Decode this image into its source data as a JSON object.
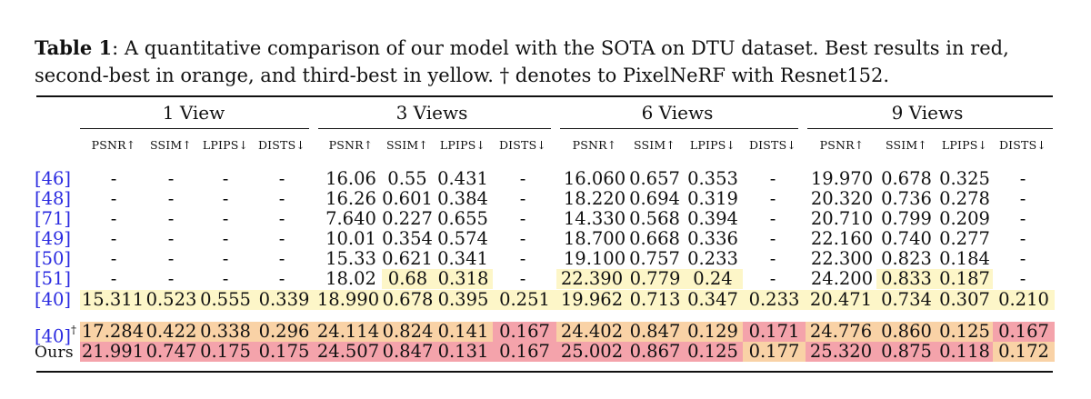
{
  "caption": {
    "label": "Table 1",
    "text": ": A quantitative comparison of our model with the SOTA on DTU dataset. Best results in red, second-best in orange, and third-best in yellow. † denotes to PixelNeRF with Resnet152."
  },
  "colors": {
    "best": "#f4a3ab",
    "second": "#f9d2a6",
    "third": "#fdf6c8",
    "ref_link": "#2b2be0"
  },
  "groups": [
    "1 View",
    "3 Views",
    "6 Views",
    "9 Views"
  ],
  "metrics": [
    "PSNR↑",
    "SSIM↑",
    "LPIPS↓",
    "DISTS↓"
  ],
  "rows": [
    {
      "ref": "[46]",
      "dagger": false,
      "values": [
        "-",
        "-",
        "-",
        "-",
        "16.06",
        "0.55",
        "0.431",
        "-",
        "16.060",
        "0.657",
        "0.353",
        "-",
        "19.970",
        "0.678",
        "0.325",
        "-"
      ],
      "hl": [
        "",
        "",
        "",
        "",
        "",
        "",
        "",
        "",
        "",
        "",
        "",
        "",
        "",
        "",
        "",
        ""
      ]
    },
    {
      "ref": "[48]",
      "dagger": false,
      "values": [
        "-",
        "-",
        "-",
        "-",
        "16.26",
        "0.601",
        "0.384",
        "-",
        "18.220",
        "0.694",
        "0.319",
        "-",
        "20.320",
        "0.736",
        "0.278",
        "-"
      ],
      "hl": [
        "",
        "",
        "",
        "",
        "",
        "",
        "",
        "",
        "",
        "",
        "",
        "",
        "",
        "",
        "",
        ""
      ]
    },
    {
      "ref": "[71]",
      "dagger": false,
      "values": [
        "-",
        "-",
        "-",
        "-",
        "7.640",
        "0.227",
        "0.655",
        "-",
        "14.330",
        "0.568",
        "0.394",
        "-",
        "20.710",
        "0.799",
        "0.209",
        "-"
      ],
      "hl": [
        "",
        "",
        "",
        "",
        "",
        "",
        "",
        "",
        "",
        "",
        "",
        "",
        "",
        "",
        "",
        ""
      ]
    },
    {
      "ref": "[49]",
      "dagger": false,
      "values": [
        "-",
        "-",
        "-",
        "-",
        "10.01",
        "0.354",
        "0.574",
        "-",
        "18.700",
        "0.668",
        "0.336",
        "-",
        "22.160",
        "0.740",
        "0.277",
        "-"
      ],
      "hl": [
        "",
        "",
        "",
        "",
        "",
        "",
        "",
        "",
        "",
        "",
        "",
        "",
        "",
        "",
        "",
        ""
      ]
    },
    {
      "ref": "[50]",
      "dagger": false,
      "values": [
        "-",
        "-",
        "-",
        "-",
        "15.33",
        "0.621",
        "0.341",
        "-",
        "19.100",
        "0.757",
        "0.233",
        "-",
        "22.300",
        "0.823",
        "0.184",
        "-"
      ],
      "hl": [
        "",
        "",
        "",
        "",
        "",
        "",
        "",
        "",
        "",
        "",
        "",
        "",
        "",
        "",
        "",
        ""
      ]
    },
    {
      "ref": "[51]",
      "dagger": false,
      "values": [
        "-",
        "-",
        "-",
        "-",
        "18.02",
        "0.68",
        "0.318",
        "-",
        "22.390",
        "0.779",
        "0.24",
        "-",
        "24.200",
        "0.833",
        "0.187",
        "-"
      ],
      "hl": [
        "",
        "",
        "",
        "",
        "",
        "third",
        "third",
        "",
        "third",
        "third",
        "third",
        "",
        "",
        "third",
        "third",
        ""
      ]
    },
    {
      "ref": "[40]",
      "dagger": false,
      "values": [
        "15.311",
        "0.523",
        "0.555",
        "0.339",
        "18.990",
        "0.678",
        "0.395",
        "0.251",
        "19.962",
        "0.713",
        "0.347",
        "0.233",
        "20.471",
        "0.734",
        "0.307",
        "0.210"
      ],
      "hl": [
        "third",
        "third",
        "third",
        "third",
        "third",
        "third",
        "third",
        "third",
        "third",
        "third",
        "third",
        "third",
        "third",
        "third",
        "third",
        "third"
      ]
    },
    {
      "ref": "[40]",
      "dagger": true,
      "values": [
        "17.284",
        "0.422",
        "0.338",
        "0.296",
        "24.114",
        "0.824",
        "0.141",
        "0.167",
        "24.402",
        "0.847",
        "0.129",
        "0.171",
        "24.776",
        "0.860",
        "0.125",
        "0.167"
      ],
      "hl": [
        "second",
        "second",
        "second",
        "second",
        "second",
        "second",
        "second",
        "best",
        "second",
        "second",
        "second",
        "best",
        "second",
        "second",
        "second",
        "best"
      ]
    },
    {
      "ref": "Ours",
      "dagger": false,
      "values": [
        "21.991",
        "0.747",
        "0.175",
        "0.175",
        "24.507",
        "0.847",
        "0.131",
        "0.167",
        "25.002",
        "0.867",
        "0.125",
        "0.177",
        "25.320",
        "0.875",
        "0.118",
        "0.172"
      ],
      "hl": [
        "best",
        "best",
        "best",
        "best",
        "best",
        "best",
        "best",
        "best",
        "best",
        "best",
        "best",
        "second",
        "best",
        "best",
        "best",
        "second"
      ]
    }
  ]
}
